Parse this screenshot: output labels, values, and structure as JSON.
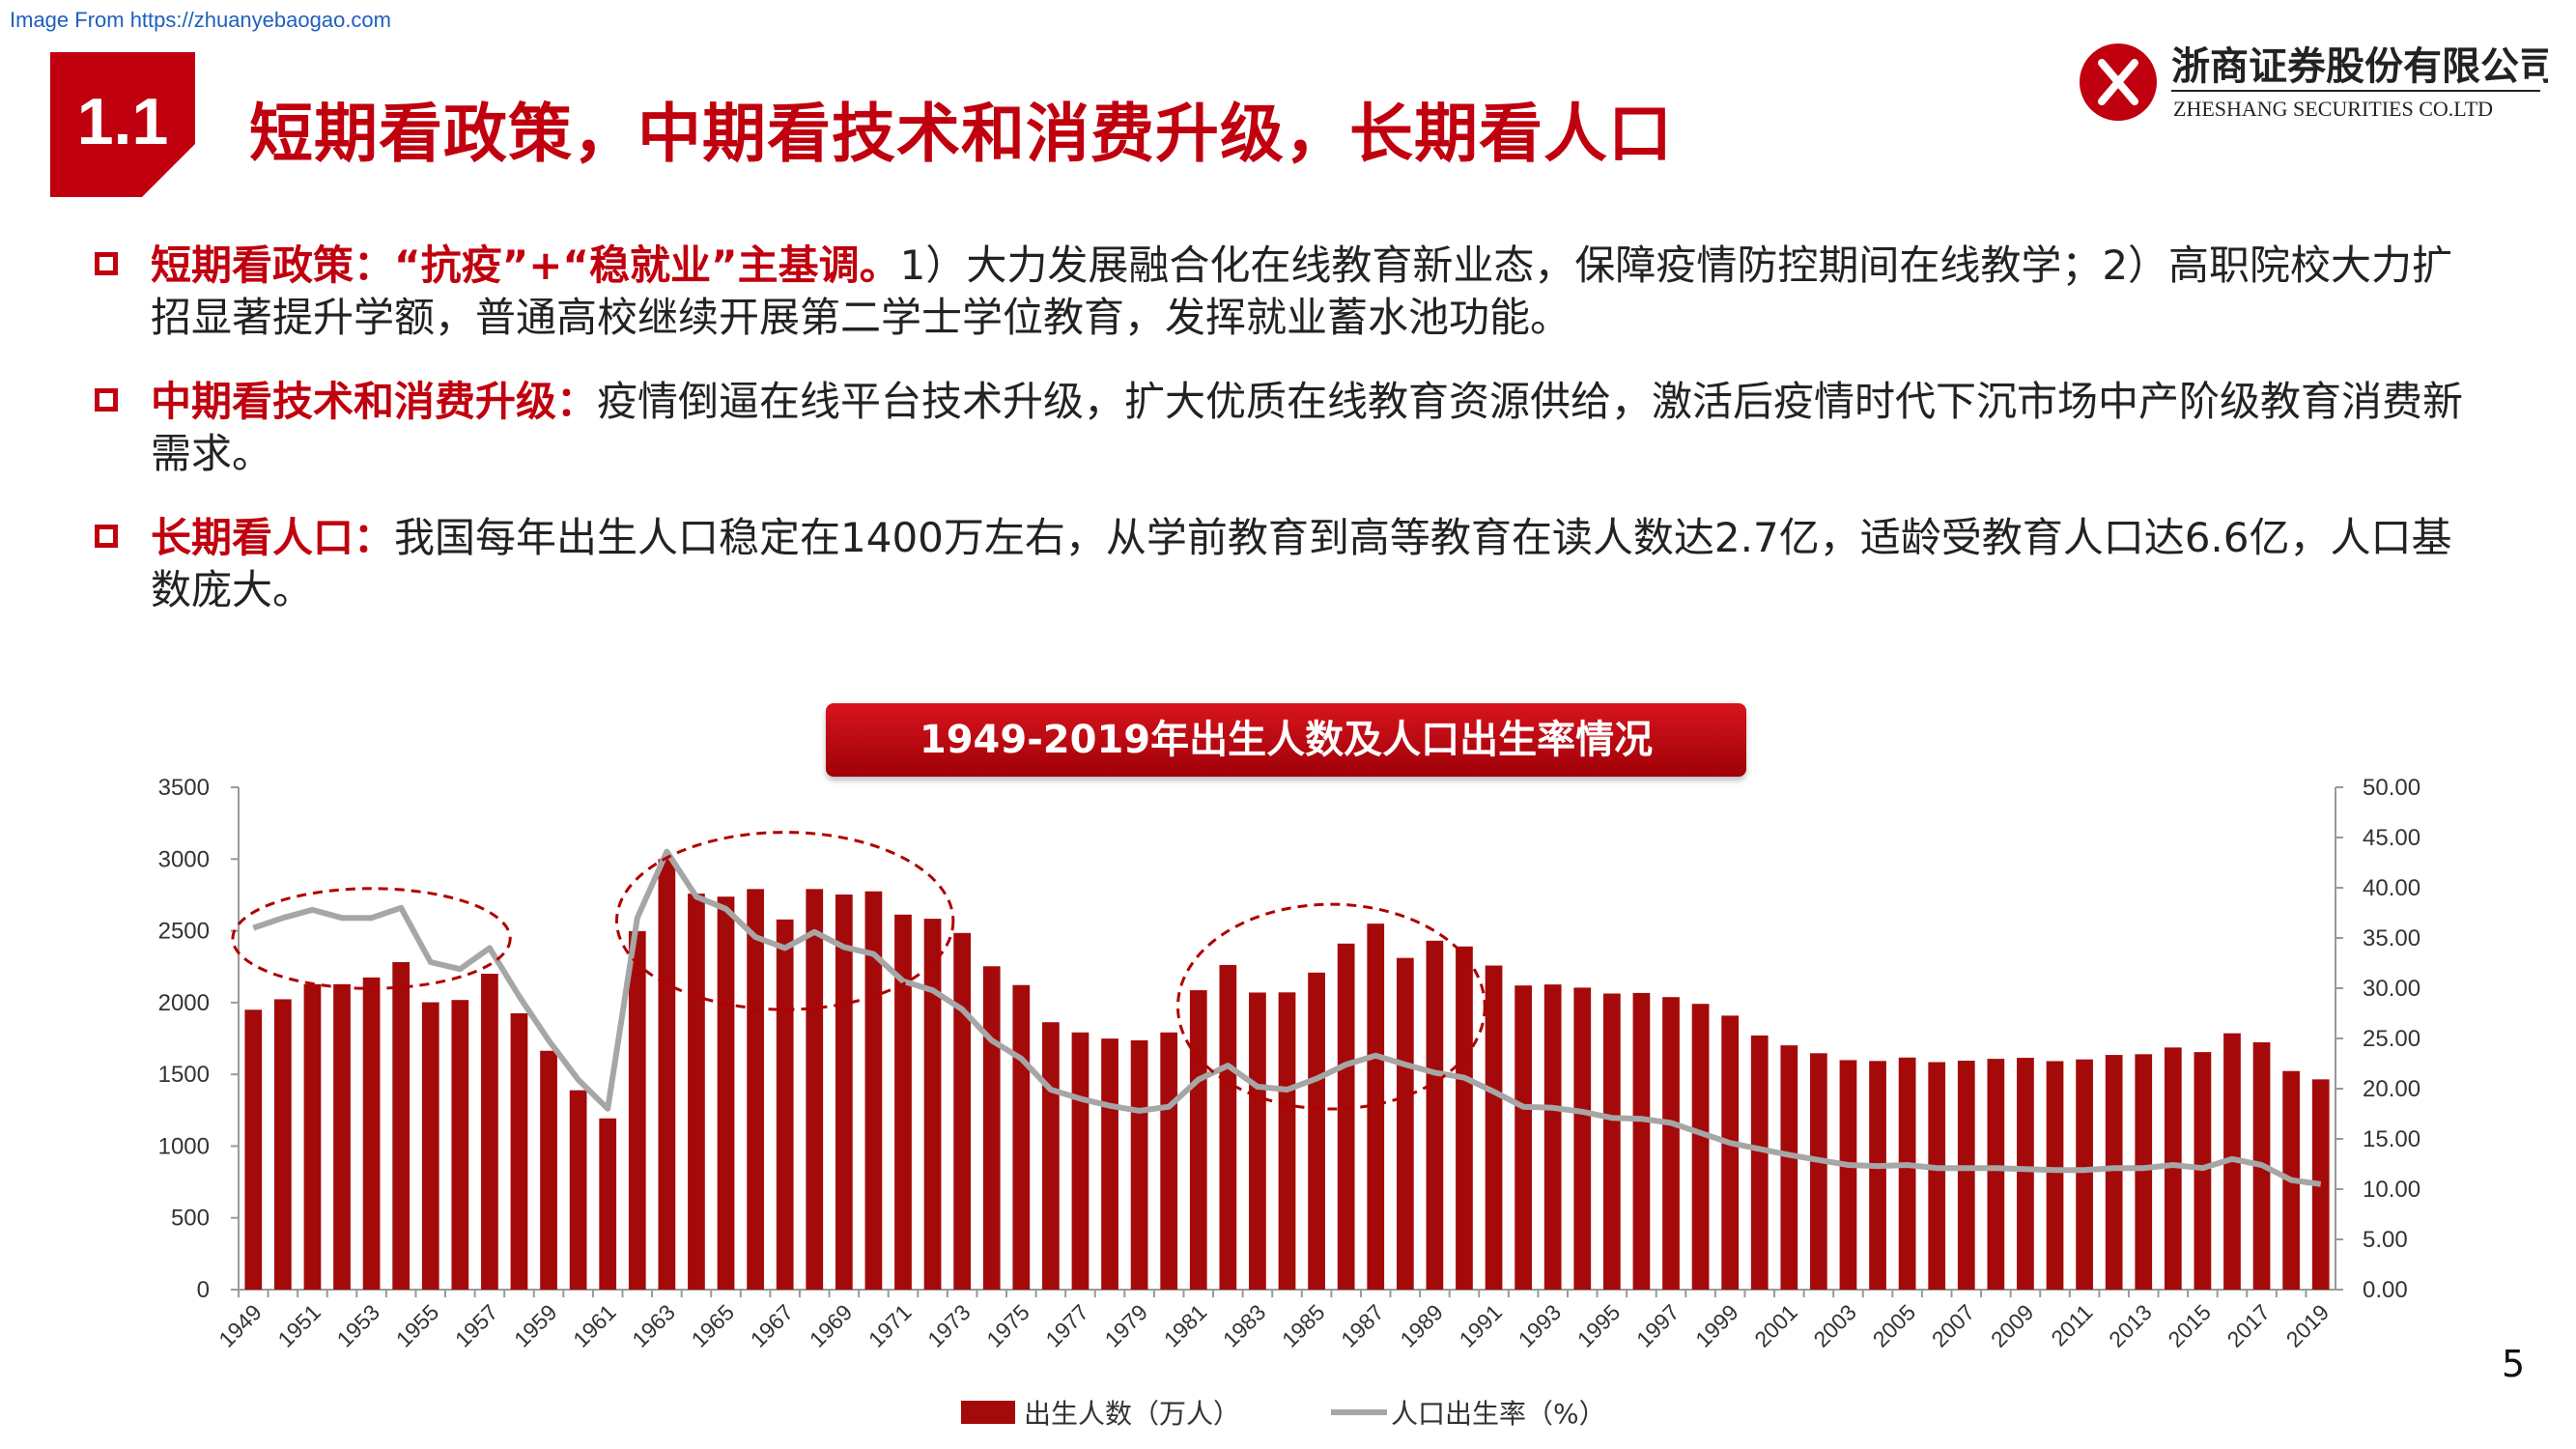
{
  "source_note": "Image From https://zhuanyebaogao.com",
  "section": {
    "number": "1.1",
    "title": "短期看政策，中期看技术和消费升级，长期看人口"
  },
  "company": {
    "name_cn": "浙商证券股份有限公司",
    "name_en": "ZHESHANG SECURITIES CO.LTD"
  },
  "colors": {
    "brand_red": "#c0000e",
    "bar_red": "#a50a0a",
    "line_gray": "#a6a6a6",
    "circle_red": "#b00000"
  },
  "bullets": [
    {
      "lead": "短期看政策：“抗疫”+“稳就业”主基调。",
      "text": "1）大力发展融合化在线教育新业态，保障疫情防控期间在线教学；2）高职院校大力扩招显著提升学额，普通高校继续开展第二学士学位教育，发挥就业蓄水池功能。"
    },
    {
      "lead": "中期看技术和消费升级：",
      "text": "疫情倒逼在线平台技术升级，扩大优质在线教育资源供给，激活后疫情时代下沉市场中产阶级教育消费新需求。"
    },
    {
      "lead": "长期看人口：",
      "text": "我国每年出生人口稳定在1400万左右，从学前教育到高等教育在读人数达2.7亿，适龄受教育人口达6.6亿，人口基数庞大。"
    }
  ],
  "page_number": "5",
  "chart_data": {
    "type": "bar",
    "title": "1949-2019年出生人数及人口出生率情况",
    "x": [
      1949,
      1950,
      1951,
      1952,
      1953,
      1954,
      1955,
      1956,
      1957,
      1958,
      1959,
      1960,
      1961,
      1962,
      1963,
      1964,
      1965,
      1966,
      1967,
      1968,
      1969,
      1970,
      1971,
      1972,
      1973,
      1974,
      1975,
      1976,
      1977,
      1978,
      1979,
      1980,
      1981,
      1982,
      1983,
      1984,
      1985,
      1986,
      1987,
      1988,
      1989,
      1990,
      1991,
      1992,
      1993,
      1994,
      1995,
      1996,
      1997,
      1998,
      1999,
      2000,
      2001,
      2002,
      2003,
      2004,
      2005,
      2006,
      2007,
      2008,
      2009,
      2010,
      2011,
      2012,
      2013,
      2014,
      2015,
      2016,
      2017,
      2018,
      2019
    ],
    "x_tick_labels": [
      "1949",
      "1951",
      "1953",
      "1955",
      "1957",
      "1959",
      "1961",
      "1963",
      "1965",
      "1967",
      "1969",
      "1971",
      "1973",
      "1975",
      "1977",
      "1979",
      "1981",
      "1983",
      "1985",
      "1987",
      "1989",
      "1991",
      "1993",
      "1995",
      "1997",
      "1999",
      "2001",
      "2003",
      "2005",
      "2007",
      "2009",
      "2011",
      "2013",
      "2015",
      "2017",
      "2019"
    ],
    "y_left_ticks": [
      "0",
      "500",
      "1000",
      "1500",
      "2000",
      "2500",
      "3000",
      "3500"
    ],
    "y_right_ticks": [
      "0.00",
      "5.00",
      "10.00",
      "15.00",
      "20.00",
      "25.00",
      "30.00",
      "35.00",
      "40.00",
      "45.00",
      "50.00"
    ],
    "ylim_left": [
      0,
      3500
    ],
    "ylim_right": [
      0,
      50
    ],
    "series": [
      {
        "name": "出生人数（万人）",
        "type": "bar",
        "axis": "left",
        "values": [
          1950,
          2023,
          2128,
          2128,
          2175,
          2282,
          2002,
          2018,
          2201,
          1925,
          1664,
          1389,
          1193,
          2498,
          3000,
          2759,
          2738,
          2791,
          2579,
          2791,
          2753,
          2775,
          2613,
          2584,
          2485,
          2253,
          2122,
          1863,
          1792,
          1749,
          1737,
          1792,
          2086,
          2262,
          2070,
          2071,
          2209,
          2411,
          2550,
          2311,
          2431,
          2391,
          2258,
          2119,
          2126,
          2104,
          2063,
          2067,
          2038,
          1991,
          1909,
          1771,
          1702,
          1647,
          1599,
          1593,
          1617,
          1585,
          1595,
          1608,
          1615,
          1592,
          1604,
          1635,
          1640,
          1687,
          1655,
          1786,
          1723,
          1523,
          1465
        ]
      },
      {
        "name": "人口出生率（%）",
        "type": "line",
        "axis": "right",
        "values": [
          36.0,
          37.0,
          37.8,
          37.0,
          37.0,
          38.0,
          32.6,
          31.9,
          34.0,
          29.2,
          24.8,
          20.9,
          18.0,
          37.0,
          43.6,
          39.1,
          37.9,
          35.1,
          34.0,
          35.6,
          34.1,
          33.4,
          30.7,
          29.8,
          27.9,
          24.8,
          23.0,
          19.9,
          19.0,
          18.3,
          17.8,
          18.2,
          20.9,
          22.3,
          20.2,
          19.9,
          21.0,
          22.4,
          23.3,
          22.4,
          21.6,
          21.1,
          19.7,
          18.2,
          18.1,
          17.7,
          17.1,
          17.0,
          16.6,
          15.6,
          14.6,
          14.0,
          13.4,
          12.9,
          12.4,
          12.3,
          12.4,
          12.1,
          12.1,
          12.1,
          12.0,
          11.9,
          11.9,
          12.1,
          12.1,
          12.4,
          12.1,
          13.0,
          12.4,
          10.9,
          10.5
        ]
      }
    ],
    "highlights": [
      "1949-1957",
      "1962-1972",
      "1981-1990"
    ],
    "legend": "bottom-center"
  }
}
